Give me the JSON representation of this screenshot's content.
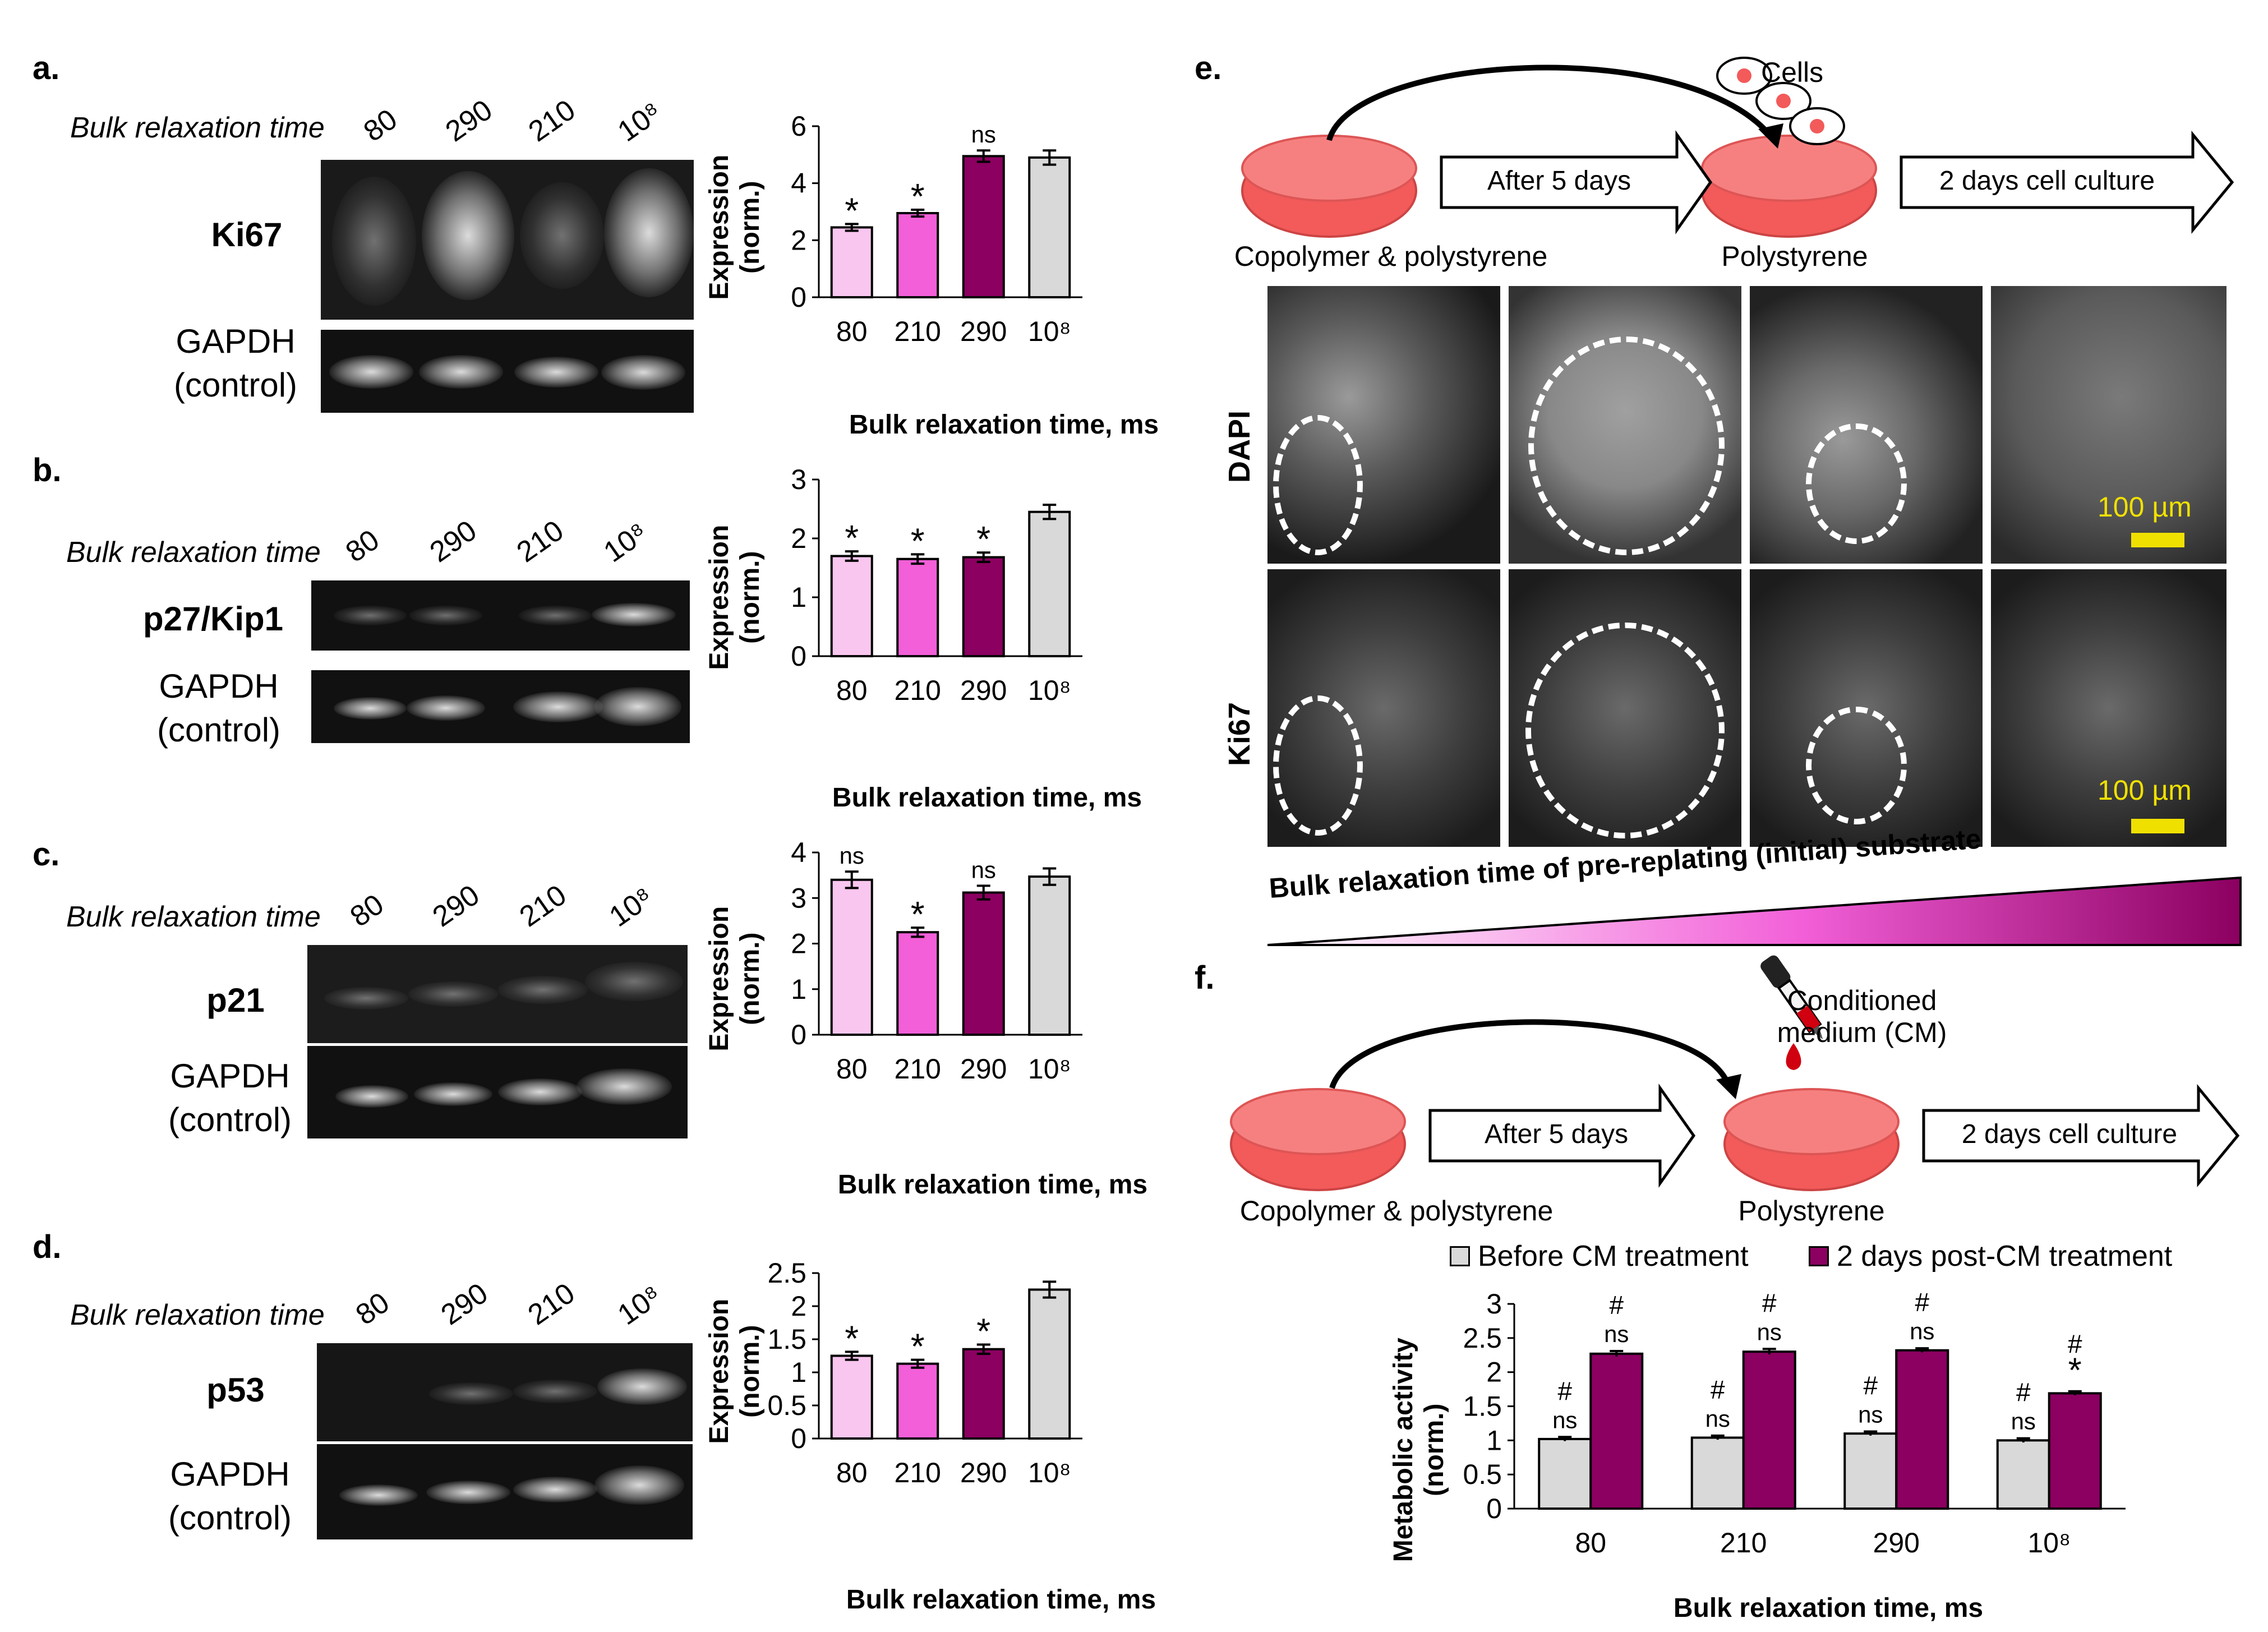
{
  "panels": {
    "a": {
      "letter": "a.",
      "brt_label": "Bulk relaxation time",
      "lanes": [
        "80",
        "290",
        "210",
        "10⁸"
      ],
      "target": "Ki67",
      "control": [
        "GAPDH",
        "(control)"
      ]
    },
    "b": {
      "letter": "b.",
      "brt_label": "Bulk relaxation time",
      "lanes": [
        "80",
        "290",
        "210",
        "10⁸"
      ],
      "target": "p27/Kip1",
      "control": [
        "GAPDH",
        "(control)"
      ]
    },
    "c": {
      "letter": "c.",
      "brt_label": "Bulk relaxation time",
      "lanes": [
        "80",
        "290",
        "210",
        "10⁸"
      ],
      "target": "p21",
      "control": [
        "GAPDH",
        "(control)"
      ]
    },
    "d": {
      "letter": "d.",
      "brt_label": "Bulk relaxation time",
      "lanes": [
        "80",
        "290",
        "210",
        "10⁸"
      ],
      "target": "p53",
      "control": [
        "GAPDH",
        "(control)"
      ]
    },
    "e": {
      "letter": "e.",
      "cells_label": "Cells",
      "arrow1": "After 5 days",
      "arrow2": "2 days cell culture",
      "dish1_label": "Copolymer & polystyrene",
      "dish2_label": "Polystyrene",
      "row1": "DAPI",
      "row2": "Ki67",
      "scale_text": "100 µm",
      "gradient_label": "Bulk relaxation time of pre-replating (initial) substrate"
    },
    "f": {
      "letter": "f.",
      "cm_label_line1": "Conditioned",
      "cm_label_line2": "medium (CM)",
      "arrow1": "After 5 days",
      "arrow2": "2 days cell culture",
      "dish1_label": "Copolymer & polystyrene",
      "dish2_label": "Polystyrene",
      "legend": [
        "Before CM treatment",
        "2 days post-CM treatment"
      ]
    }
  },
  "colors": {
    "light_pink": "#f9c6ef",
    "pink": "#f25fd8",
    "purple": "#8b0060",
    "gray": "#d9d9d9",
    "dish": "#f35a5a",
    "scale": "#f0e000"
  },
  "chart_data": [
    {
      "id": "a",
      "type": "bar",
      "categories": [
        "80",
        "210",
        "290",
        "10⁸"
      ],
      "values": [
        2.45,
        2.95,
        4.95,
        4.9
      ],
      "errors": [
        0.12,
        0.12,
        0.2,
        0.25
      ],
      "annotations": [
        "*",
        "*",
        "ns",
        ""
      ],
      "colors": [
        "#f9c6ef",
        "#f25fd8",
        "#8b0060",
        "#d9d9d9"
      ],
      "ylim": [
        0,
        6
      ],
      "yticks": [
        0,
        2,
        4,
        6
      ],
      "ylabel": "Expression (norm.)",
      "xlabel": "Bulk relaxation time, ms"
    },
    {
      "id": "b",
      "type": "bar",
      "categories": [
        "80",
        "210",
        "290",
        "10⁸"
      ],
      "values": [
        1.7,
        1.65,
        1.68,
        2.45
      ],
      "errors": [
        0.08,
        0.08,
        0.08,
        0.12
      ],
      "annotations": [
        "*",
        "*",
        "*",
        ""
      ],
      "colors": [
        "#f9c6ef",
        "#f25fd8",
        "#8b0060",
        "#d9d9d9"
      ],
      "ylim": [
        0,
        3
      ],
      "yticks": [
        0,
        1,
        2,
        3
      ],
      "ylabel": "Expression (norm.)",
      "xlabel": "Bulk relaxation time, ms"
    },
    {
      "id": "c",
      "type": "bar",
      "categories": [
        "80",
        "210",
        "290",
        "10⁸"
      ],
      "values": [
        3.4,
        2.25,
        3.12,
        3.47
      ],
      "errors": [
        0.18,
        0.1,
        0.15,
        0.18
      ],
      "annotations": [
        "ns",
        "*",
        "ns",
        ""
      ],
      "colors": [
        "#f9c6ef",
        "#f25fd8",
        "#8b0060",
        "#d9d9d9"
      ],
      "ylim": [
        0,
        4
      ],
      "yticks": [
        0,
        1,
        2,
        3,
        4
      ],
      "ylabel": "Expression (norm.)",
      "xlabel": "Bulk relaxation time, ms"
    },
    {
      "id": "d",
      "type": "bar",
      "categories": [
        "80",
        "210",
        "290",
        "10⁸"
      ],
      "values": [
        1.25,
        1.13,
        1.35,
        2.25
      ],
      "errors": [
        0.06,
        0.06,
        0.07,
        0.12
      ],
      "annotations": [
        "*",
        "*",
        "*",
        ""
      ],
      "colors": [
        "#f9c6ef",
        "#f25fd8",
        "#8b0060",
        "#d9d9d9"
      ],
      "ylim": [
        0,
        2.5
      ],
      "yticks": [
        0,
        0.5,
        1,
        1.5,
        2,
        2.5
      ],
      "ylabel": "Expression (norm.)",
      "xlabel": "Bulk relaxation time, ms"
    },
    {
      "id": "f",
      "type": "bar",
      "categories": [
        "80",
        "210",
        "290",
        "10⁸"
      ],
      "series": [
        {
          "name": "Before CM treatment",
          "values": [
            1.02,
            1.04,
            1.1,
            1.0
          ],
          "errors": [
            0.03,
            0.03,
            0.03,
            0.03
          ],
          "annotations": [
            [
              "#",
              "ns"
            ],
            [
              "#",
              "ns"
            ],
            [
              "#",
              "ns"
            ],
            [
              "#",
              "ns"
            ]
          ],
          "color": "#d9d9d9"
        },
        {
          "name": "2 days post-CM treatment",
          "values": [
            2.27,
            2.3,
            2.32,
            1.69
          ],
          "errors": [
            0.04,
            0.04,
            0.03,
            0.03
          ],
          "annotations": [
            [
              "#",
              "ns"
            ],
            [
              "#",
              "ns"
            ],
            [
              "#",
              "ns"
            ],
            [
              "#",
              "*"
            ]
          ],
          "color": "#8b0060"
        }
      ],
      "ylim": [
        0,
        3
      ],
      "yticks": [
        0,
        0.5,
        1,
        1.5,
        2,
        2.5,
        3
      ],
      "ylabel": "Metabolic activity (norm.)",
      "xlabel": "Bulk relaxation time, ms"
    }
  ]
}
